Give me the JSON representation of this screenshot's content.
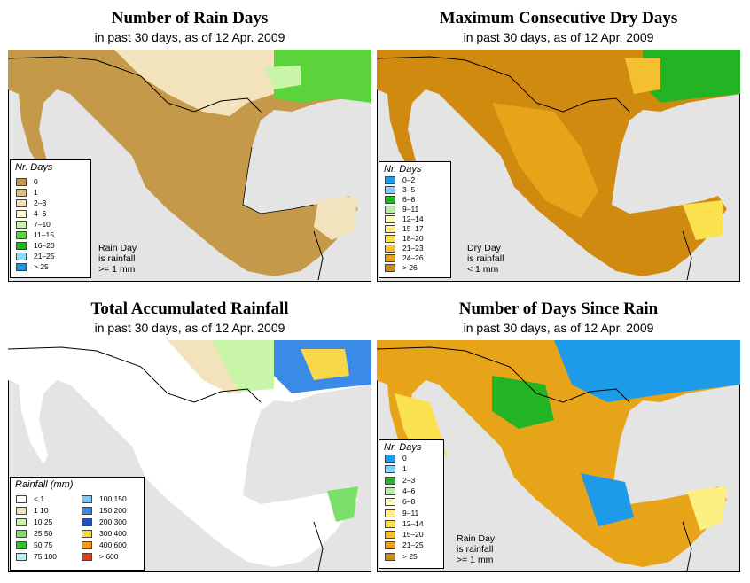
{
  "panels": {
    "rain_days": {
      "title": "Number of Rain Days",
      "subtitle": "in past 30 days, as of  12 Apr. 2009",
      "legend_title": "Nr. Days",
      "legend": [
        {
          "label": "0",
          "color": "#c49a4a"
        },
        {
          "label": "1",
          "color": "#dbbd85"
        },
        {
          "label": "2–3",
          "color": "#f3e3bd"
        },
        {
          "label": "4–6",
          "color": "#fdfbd0"
        },
        {
          "label": "7–10",
          "color": "#c8f5a8"
        },
        {
          "label": "11–15",
          "color": "#5ad43a"
        },
        {
          "label": "16–20",
          "color": "#1fb41f"
        },
        {
          "label": "21–25",
          "color": "#8fd8f8"
        },
        {
          "label": "> 25",
          "color": "#1e90e0"
        }
      ],
      "note": [
        "Rain Day",
        "is rainfall",
        ">= 1 mm"
      ]
    },
    "dry_days": {
      "title": "Maximum Consecutive Dry Days",
      "subtitle": "in past 30 days, as of  12 Apr. 2009",
      "legend_title": "Nr. Days",
      "legend": [
        {
          "label": "0–2",
          "color": "#1e9be8"
        },
        {
          "label": "3–5",
          "color": "#7fd0f5"
        },
        {
          "label": "6–8",
          "color": "#22b422"
        },
        {
          "label": "9–11",
          "color": "#b8f0a0"
        },
        {
          "label": "12–14",
          "color": "#fdfbc0"
        },
        {
          "label": "15–17",
          "color": "#fdf080"
        },
        {
          "label": "18–20",
          "color": "#fbe050"
        },
        {
          "label": "21–23",
          "color": "#f5c030"
        },
        {
          "label": "24–26",
          "color": "#e8a418"
        },
        {
          "label": "> 26",
          "color": "#d08a10"
        }
      ],
      "note": [
        "Dry Day",
        "is rainfall",
        "< 1 mm"
      ]
    },
    "total_rain": {
      "title": "Total Accumulated Rainfall",
      "subtitle": "in past 30 days, as of  12 Apr. 2009",
      "legend_title": "Rainfall (mm)",
      "legend_left": [
        {
          "label": "< 1",
          "color": "#ffffff"
        },
        {
          "label": "1    10",
          "color": "#f3e3bd"
        },
        {
          "label": "10    25",
          "color": "#c8f5a8"
        },
        {
          "label": "25    50",
          "color": "#7be06a"
        },
        {
          "label": "50    75",
          "color": "#2ec42e"
        },
        {
          "label": "75  100",
          "color": "#b8ecf8"
        }
      ],
      "legend_right": [
        {
          "label": "100  150",
          "color": "#7fc8f5"
        },
        {
          "label": "150  200",
          "color": "#3a8ae8"
        },
        {
          "label": "200  300",
          "color": "#1f50c8"
        },
        {
          "label": "300  400",
          "color": "#f8d848"
        },
        {
          "label": "400  600",
          "color": "#f59a20"
        },
        {
          "label": "> 600",
          "color": "#e83a10"
        }
      ]
    },
    "since_rain": {
      "title": "Number of Days Since Rain",
      "subtitle": "in past 30 days, as of  12 Apr. 2009",
      "legend_title": "Nr. Days",
      "legend": [
        {
          "label": "0",
          "color": "#1e9be8"
        },
        {
          "label": "1",
          "color": "#7fd0f5"
        },
        {
          "label": "2–3",
          "color": "#22b422"
        },
        {
          "label": "4–6",
          "color": "#b8f0a0"
        },
        {
          "label": "6–8",
          "color": "#fdfbc0"
        },
        {
          "label": "9–11",
          "color": "#fdf080"
        },
        {
          "label": "12–14",
          "color": "#fbe050"
        },
        {
          "label": "15–20",
          "color": "#f5c030"
        },
        {
          "label": "21–25",
          "color": "#e8a418"
        },
        {
          "label": "> 25",
          "color": "#d08a10"
        }
      ],
      "note": [
        "Rain Day",
        "is rainfall",
        ">= 1 mm"
      ]
    }
  },
  "colors": {
    "ocean": "#e4e4e4",
    "border": "#000000"
  }
}
